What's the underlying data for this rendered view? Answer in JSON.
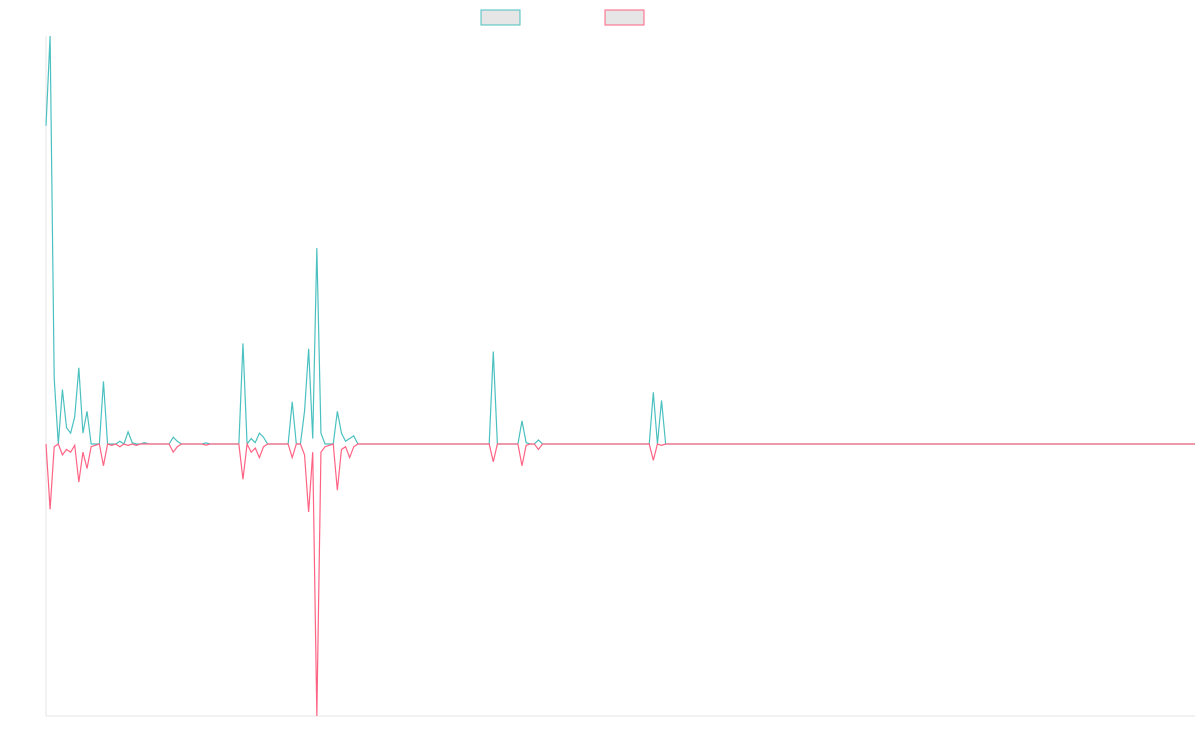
{
  "chart_data": {
    "type": "line",
    "title": "",
    "xlabel": "",
    "ylabel": "",
    "grid": false,
    "legend_position": "top-center",
    "colors": {
      "series_1": "#4bc0c0",
      "series_2": "#ff6384",
      "legend_fill": "#e6e6e6",
      "axis": "#e5e5e5",
      "background": "#ffffff"
    },
    "ylim": [
      -1000,
      1500
    ],
    "categories_count": 280,
    "series": [
      {
        "points": [
          [
            0,
            1170
          ],
          [
            1,
            1500
          ],
          [
            2,
            240
          ],
          [
            3,
            0
          ],
          [
            4,
            200
          ],
          [
            5,
            60
          ],
          [
            6,
            40
          ],
          [
            7,
            100
          ],
          [
            8,
            280
          ],
          [
            9,
            40
          ],
          [
            10,
            120
          ],
          [
            11,
            0
          ],
          [
            12,
            0
          ],
          [
            13,
            0
          ],
          [
            14,
            230
          ],
          [
            15,
            0
          ],
          [
            16,
            0
          ],
          [
            17,
            0
          ],
          [
            18,
            10
          ],
          [
            19,
            0
          ],
          [
            20,
            45
          ],
          [
            21,
            5
          ],
          [
            22,
            0
          ],
          [
            23,
            0
          ],
          [
            24,
            5
          ],
          [
            25,
            0
          ],
          [
            30,
            0
          ],
          [
            31,
            25
          ],
          [
            32,
            10
          ],
          [
            33,
            0
          ],
          [
            38,
            0
          ],
          [
            39,
            4
          ],
          [
            40,
            0
          ],
          [
            47,
            0
          ],
          [
            48,
            370
          ],
          [
            49,
            0
          ],
          [
            50,
            20
          ],
          [
            51,
            5
          ],
          [
            52,
            40
          ],
          [
            53,
            25
          ],
          [
            54,
            0
          ],
          [
            59,
            0
          ],
          [
            60,
            155
          ],
          [
            61,
            0
          ],
          [
            62,
            0
          ],
          [
            63,
            120
          ],
          [
            64,
            350
          ],
          [
            65,
            20
          ],
          [
            66,
            720
          ],
          [
            67,
            40
          ],
          [
            68,
            0
          ],
          [
            70,
            0
          ],
          [
            71,
            120
          ],
          [
            72,
            40
          ],
          [
            73,
            10
          ],
          [
            74,
            20
          ],
          [
            75,
            30
          ],
          [
            76,
            0
          ],
          [
            88,
            0
          ],
          [
            89,
            0
          ],
          [
            108,
            0
          ],
          [
            109,
            340
          ],
          [
            110,
            0
          ],
          [
            115,
            0
          ],
          [
            116,
            85
          ],
          [
            117,
            5
          ],
          [
            118,
            0
          ],
          [
            119,
            0
          ],
          [
            120,
            15
          ],
          [
            121,
            0
          ],
          [
            147,
            0
          ],
          [
            148,
            190
          ],
          [
            149,
            0
          ],
          [
            150,
            160
          ],
          [
            151,
            0
          ],
          [
            280,
            0
          ]
        ]
      },
      {
        "points": [
          [
            0,
            0
          ],
          [
            1,
            -240
          ],
          [
            2,
            -10
          ],
          [
            3,
            0
          ],
          [
            4,
            -40
          ],
          [
            5,
            -20
          ],
          [
            6,
            -30
          ],
          [
            7,
            -5
          ],
          [
            8,
            -140
          ],
          [
            9,
            -30
          ],
          [
            10,
            -90
          ],
          [
            11,
            -10
          ],
          [
            12,
            -5
          ],
          [
            13,
            0
          ],
          [
            14,
            -80
          ],
          [
            15,
            0
          ],
          [
            16,
            -5
          ],
          [
            17,
            0
          ],
          [
            18,
            -10
          ],
          [
            19,
            0
          ],
          [
            20,
            -5
          ],
          [
            21,
            0
          ],
          [
            22,
            -5
          ],
          [
            23,
            0
          ],
          [
            24,
            0
          ],
          [
            25,
            0
          ],
          [
            30,
            0
          ],
          [
            31,
            -30
          ],
          [
            32,
            -10
          ],
          [
            33,
            0
          ],
          [
            38,
            0
          ],
          [
            39,
            -4
          ],
          [
            40,
            0
          ],
          [
            47,
            0
          ],
          [
            48,
            -130
          ],
          [
            49,
            0
          ],
          [
            50,
            -30
          ],
          [
            51,
            -15
          ],
          [
            52,
            -50
          ],
          [
            53,
            -10
          ],
          [
            54,
            0
          ],
          [
            59,
            0
          ],
          [
            60,
            -50
          ],
          [
            61,
            0
          ],
          [
            62,
            0
          ],
          [
            63,
            -40
          ],
          [
            64,
            -250
          ],
          [
            65,
            -30
          ],
          [
            66,
            -1000
          ],
          [
            67,
            -30
          ],
          [
            68,
            -10
          ],
          [
            70,
            0
          ],
          [
            71,
            -170
          ],
          [
            72,
            -20
          ],
          [
            73,
            -10
          ],
          [
            74,
            -50
          ],
          [
            75,
            -10
          ],
          [
            76,
            0
          ],
          [
            108,
            0
          ],
          [
            109,
            -65
          ],
          [
            110,
            0
          ],
          [
            115,
            0
          ],
          [
            116,
            -80
          ],
          [
            117,
            -5
          ],
          [
            118,
            0
          ],
          [
            119,
            0
          ],
          [
            120,
            -20
          ],
          [
            121,
            0
          ],
          [
            147,
            0
          ],
          [
            148,
            -60
          ],
          [
            149,
            0
          ],
          [
            150,
            -5
          ],
          [
            151,
            0
          ],
          [
            280,
            0
          ]
        ]
      }
    ]
  }
}
